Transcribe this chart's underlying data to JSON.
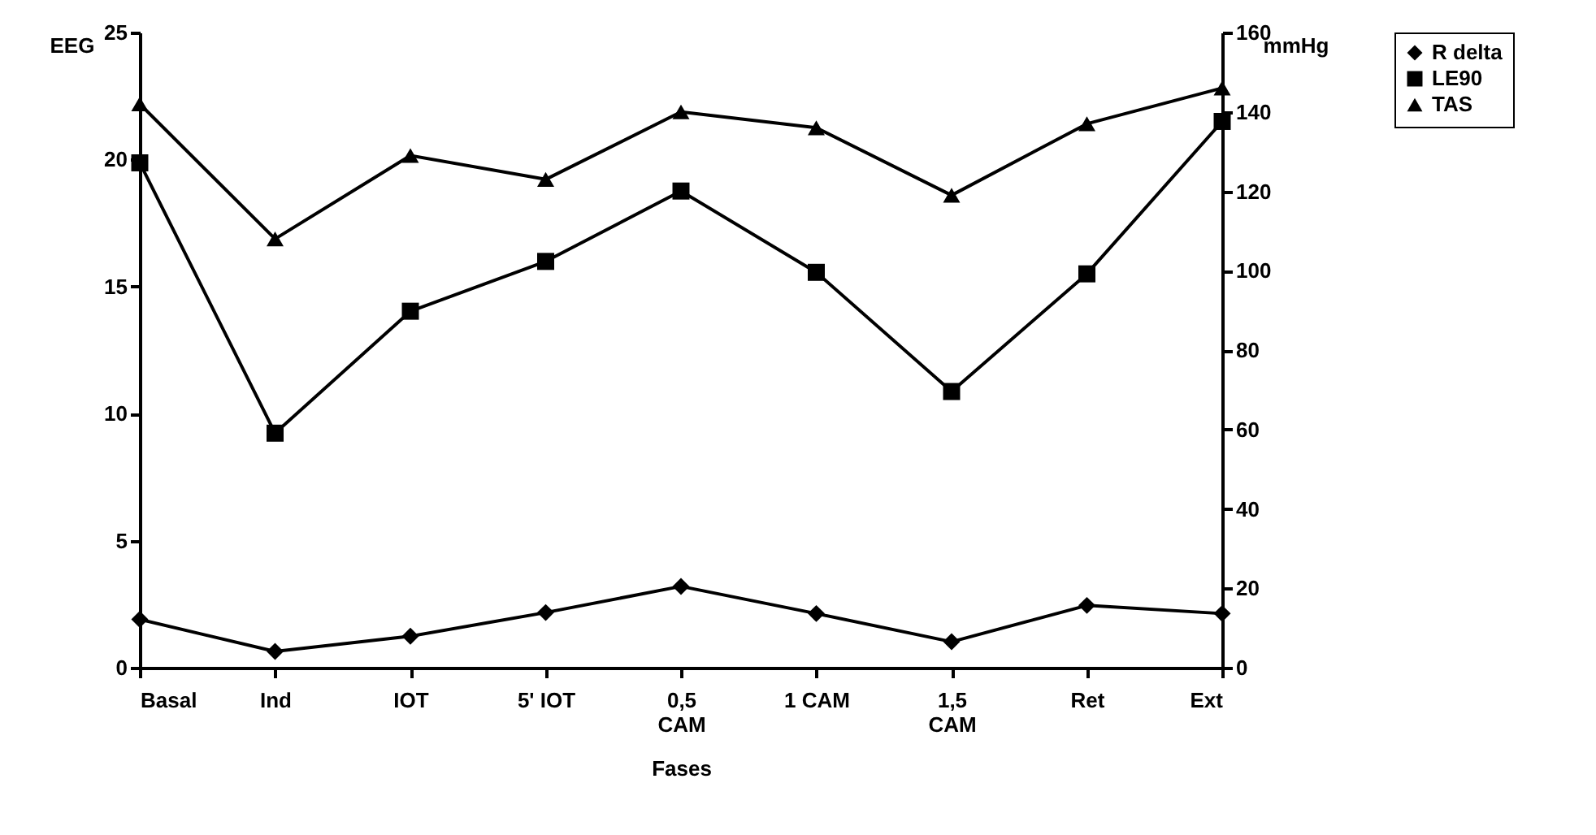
{
  "chart_data": {
    "type": "line",
    "xlabel": "Fases",
    "ylabel": "EEG",
    "y2label": "mmHg",
    "categories": [
      "Basal",
      "Ind",
      "IOT",
      "5' IOT",
      "0,5\nCAM",
      "1 CAM",
      "1,5\nCAM",
      "Ret",
      "Ext"
    ],
    "ylim": [
      0,
      25
    ],
    "yticks": [
      0,
      5,
      10,
      15,
      20,
      25
    ],
    "y2lim": [
      0,
      160
    ],
    "y2ticks": [
      0,
      20,
      40,
      60,
      80,
      100,
      120,
      140,
      160
    ],
    "legend": "right",
    "series": [
      {
        "name": "R delta",
        "color": "#000000",
        "marker": "diamond",
        "values": [
          1.9,
          0.64,
          1.24,
          2.17,
          3.2,
          2.13,
          1.02,
          2.45,
          2.13
        ]
      },
      {
        "name": "LE90",
        "color": "#000000",
        "marker": "square",
        "values": [
          19.87,
          9.23,
          14.03,
          15.99,
          18.76,
          15.56,
          10.87,
          15.5,
          21.5
        ]
      },
      {
        "name": "TAS",
        "color": "#000000",
        "marker": "triangle",
        "axis": "y2",
        "values": [
          142,
          108,
          129,
          123,
          140,
          136,
          119,
          137,
          146
        ]
      }
    ]
  }
}
